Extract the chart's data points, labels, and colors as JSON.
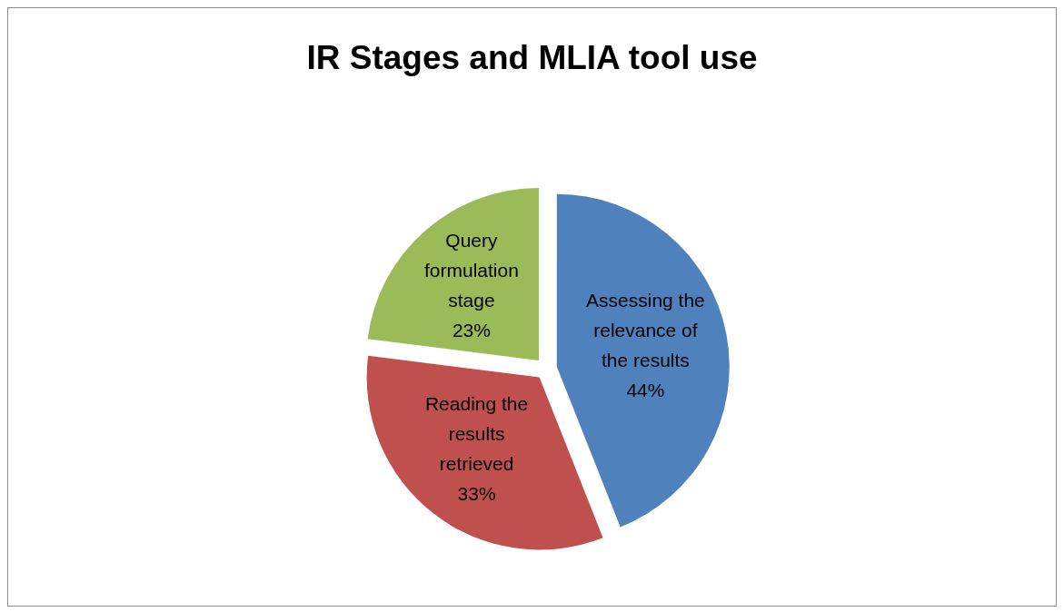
{
  "chart_data": {
    "type": "pie",
    "title": "IR Stages and MLIA tool use",
    "categories": [
      "Assessing the relevance of the results",
      "Reading the results retrieved",
      "Query formulation stage"
    ],
    "values": [
      44,
      33,
      23
    ],
    "value_labels": [
      "44%",
      "33%",
      "23%"
    ],
    "colors": [
      "#4f81bd",
      "#c0504d",
      "#9bbb59"
    ],
    "legend": false
  }
}
